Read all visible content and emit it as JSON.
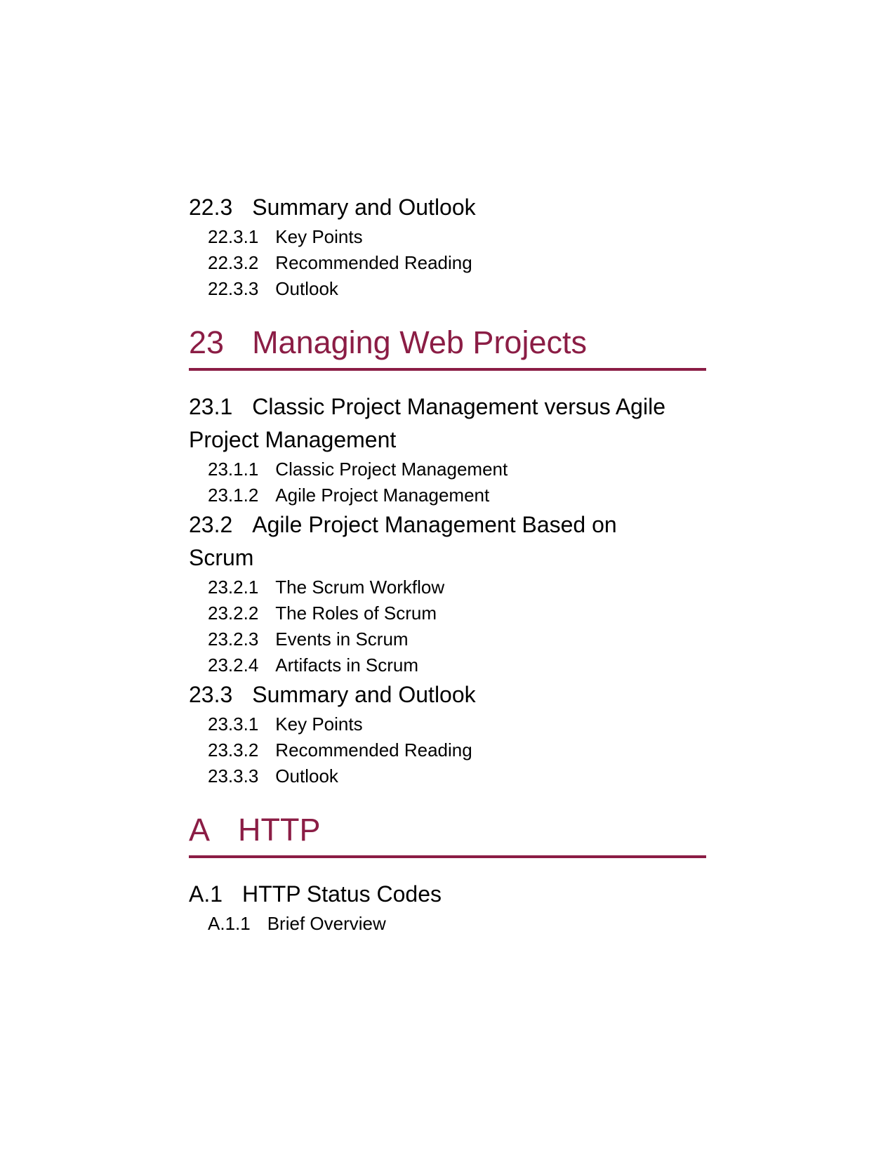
{
  "toc": {
    "s22_3": {
      "num": "22.3",
      "title": "Summary and Outlook"
    },
    "s22_3_1": {
      "num": "22.3.1",
      "title": "Key Points"
    },
    "s22_3_2": {
      "num": "22.3.2",
      "title": "Recommended Reading"
    },
    "s22_3_3": {
      "num": "22.3.3",
      "title": "Outlook"
    },
    "ch23": {
      "num": "23",
      "title": "Managing Web Projects"
    },
    "s23_1": {
      "num": "23.1",
      "title": "Classic Project Management versus Agile Project Management"
    },
    "s23_1_1": {
      "num": "23.1.1",
      "title": "Classic Project Management"
    },
    "s23_1_2": {
      "num": "23.1.2",
      "title": "Agile Project Management"
    },
    "s23_2": {
      "num": "23.2",
      "title": "Agile Project Management Based on Scrum"
    },
    "s23_2_1": {
      "num": "23.2.1",
      "title": "The Scrum Workflow"
    },
    "s23_2_2": {
      "num": "23.2.2",
      "title": "The Roles of Scrum"
    },
    "s23_2_3": {
      "num": "23.2.3",
      "title": "Events in Scrum"
    },
    "s23_2_4": {
      "num": "23.2.4",
      "title": "Artifacts in Scrum"
    },
    "s23_3": {
      "num": "23.3",
      "title": "Summary and Outlook"
    },
    "s23_3_1": {
      "num": "23.3.1",
      "title": "Key Points"
    },
    "s23_3_2": {
      "num": "23.3.2",
      "title": "Recommended Reading"
    },
    "s23_3_3": {
      "num": "23.3.3",
      "title": "Outlook"
    },
    "chA": {
      "num": "A",
      "title": "HTTP"
    },
    "sA_1": {
      "num": "A.1",
      "title": "HTTP Status Codes"
    },
    "sA_1_1": {
      "num": "A.1.1",
      "title": "Brief Overview"
    }
  },
  "colors": {
    "chapter_accent": "#8b1d45"
  }
}
